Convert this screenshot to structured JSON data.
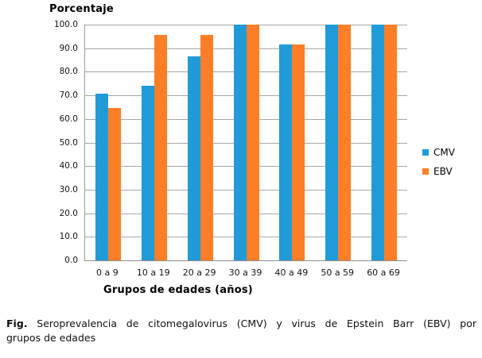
{
  "chart_data": {
    "type": "bar",
    "title": "Porcentaje",
    "xlabel": "Grupos de edades (años)",
    "ylabel": "Porcentaje",
    "categories": [
      "0 a 9",
      "10 a 19",
      "20 a 29",
      "30 a 39",
      "40 a 49",
      "50 a 59",
      "60 a 69"
    ],
    "series": [
      {
        "name": "CMV",
        "color": "#209BD8",
        "values": [
          70.8,
          74.0,
          86.5,
          100.0,
          91.5,
          100.0,
          100.0
        ]
      },
      {
        "name": "EBV",
        "color": "#FC7E27",
        "values": [
          64.6,
          95.5,
          95.5,
          100.0,
          91.5,
          100.0,
          100.0
        ]
      }
    ],
    "ylim": [
      0,
      100
    ],
    "yticks": [
      0,
      10,
      20,
      30,
      40,
      50,
      60,
      70,
      80,
      90,
      100
    ],
    "ytick_labels": [
      "0.0",
      "10.0",
      "20.0",
      "30.0",
      "40.0",
      "50.0",
      "60.0",
      "70.0",
      "80.0",
      "90.0",
      "100.0"
    ],
    "grid": true,
    "legend_position": "right",
    "colors": {
      "gridline": "#a6a6a6",
      "axis": "#8a8a8a",
      "text": "#141414"
    }
  },
  "caption": {
    "prefix": "Fig.",
    "line1": "Seroprevalencia de citomegalovirus (CMV) y virus de Epstein Barr (EBV) por",
    "line2": "grupos de edades"
  }
}
